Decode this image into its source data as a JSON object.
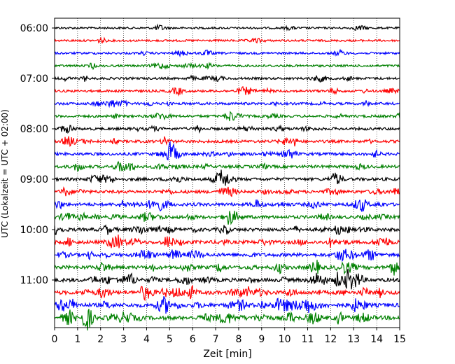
{
  "chart_data": {
    "type": "line",
    "title": "",
    "xlabel": "Zeit  [min]",
    "ylabel": "UTC (Lokalzeit = UTC + 02:00)",
    "xlim": [
      0,
      15
    ],
    "x_ticks": [
      "0",
      "1",
      "2",
      "3",
      "4",
      "5",
      "6",
      "7",
      "8",
      "9",
      "10",
      "11",
      "12",
      "13",
      "14",
      "15"
    ],
    "y_ticks": [
      "06:00",
      "07:00",
      "08:00",
      "09:00",
      "10:00",
      "11:00"
    ],
    "grid": "vertical-dotted",
    "trace_colors": [
      "#000000",
      "#ff0000",
      "#0000ff",
      "#008000"
    ],
    "traces": [
      {
        "start": "06:00",
        "color": "#000000"
      },
      {
        "start": "06:15",
        "color": "#ff0000"
      },
      {
        "start": "06:30",
        "color": "#0000ff"
      },
      {
        "start": "06:45",
        "color": "#008000"
      },
      {
        "start": "07:00",
        "color": "#000000"
      },
      {
        "start": "07:15",
        "color": "#ff0000"
      },
      {
        "start": "07:30",
        "color": "#0000ff"
      },
      {
        "start": "07:45",
        "color": "#008000"
      },
      {
        "start": "08:00",
        "color": "#000000"
      },
      {
        "start": "08:15",
        "color": "#ff0000"
      },
      {
        "start": "08:30",
        "color": "#0000ff"
      },
      {
        "start": "08:45",
        "color": "#008000"
      },
      {
        "start": "09:00",
        "color": "#000000"
      },
      {
        "start": "09:15",
        "color": "#ff0000"
      },
      {
        "start": "09:30",
        "color": "#0000ff"
      },
      {
        "start": "09:45",
        "color": "#008000"
      },
      {
        "start": "10:00",
        "color": "#000000"
      },
      {
        "start": "10:15",
        "color": "#ff0000"
      },
      {
        "start": "10:30",
        "color": "#0000ff"
      },
      {
        "start": "10:45",
        "color": "#008000"
      },
      {
        "start": "11:00",
        "color": "#000000"
      },
      {
        "start": "11:15",
        "color": "#ff0000"
      },
      {
        "start": "11:30",
        "color": "#0000ff"
      },
      {
        "start": "11:45",
        "color": "#008000"
      }
    ]
  }
}
